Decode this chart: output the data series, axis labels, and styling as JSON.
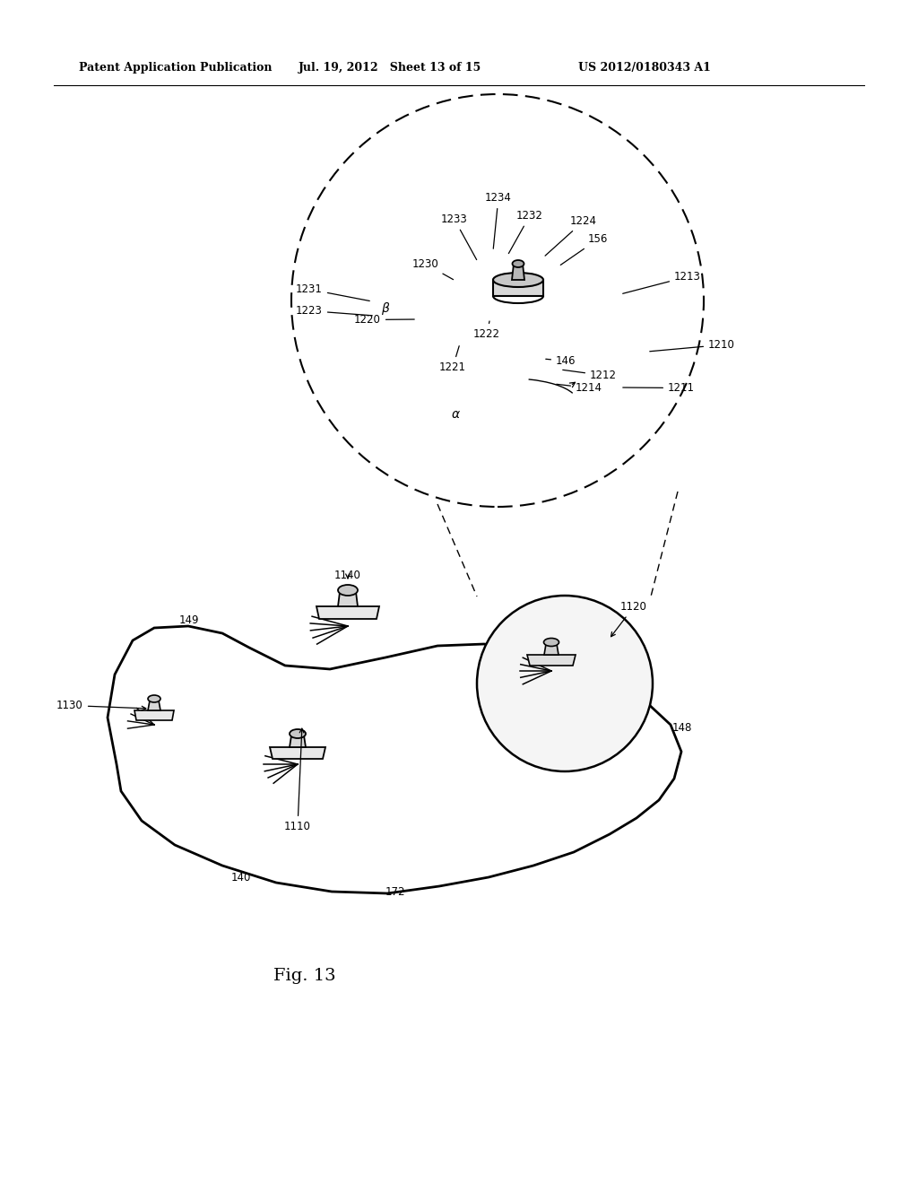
{
  "bg_color": "#ffffff",
  "header_left": "Patent Application Publication",
  "header_mid": "Jul. 19, 2012   Sheet 13 of 15",
  "header_right": "US 2012/0180343 A1",
  "fig_caption": "Fig. 13"
}
